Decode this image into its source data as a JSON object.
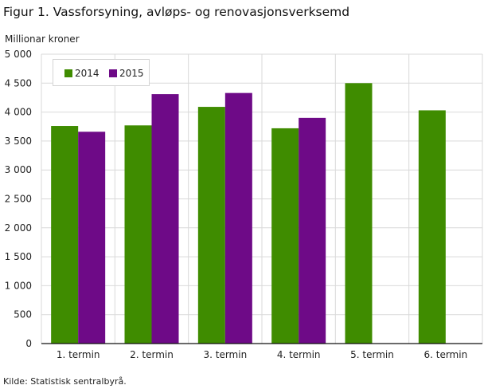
{
  "title": "Figur 1. Vassforsyning, avløps- og renovasjonsverksemd",
  "source": "Kilde: Statistisk sentralbyrå.",
  "chart_data": {
    "type": "bar",
    "title": "Figur 1. Vassforsyning, avløps- og renovasjonsverksemd",
    "ylabel": "Millionar  kroner",
    "xlabel": "",
    "categories": [
      "1. termin",
      "2. termin",
      "3. termin",
      "4. termin",
      "5. termin",
      "6. termin"
    ],
    "series": [
      {
        "name": "2014",
        "color": "#3f8c00",
        "values": [
          3760,
          3770,
          4090,
          3720,
          4500,
          4030
        ]
      },
      {
        "name": "2015",
        "color": "#6e0a87",
        "values": [
          3660,
          4310,
          4330,
          3900,
          null,
          null
        ]
      }
    ],
    "ylim": [
      0,
      5000
    ],
    "yticks": [
      0,
      500,
      1000,
      1500,
      2000,
      2500,
      3000,
      3500,
      4000,
      4500,
      5000
    ],
    "ytick_labels": [
      "0",
      "500",
      "1 000",
      "1 500",
      "2 000",
      "2 500",
      "3 000",
      "3 500",
      "4 000",
      "4 500",
      "5 000"
    ],
    "grid": true,
    "legend_position": "top-left"
  }
}
